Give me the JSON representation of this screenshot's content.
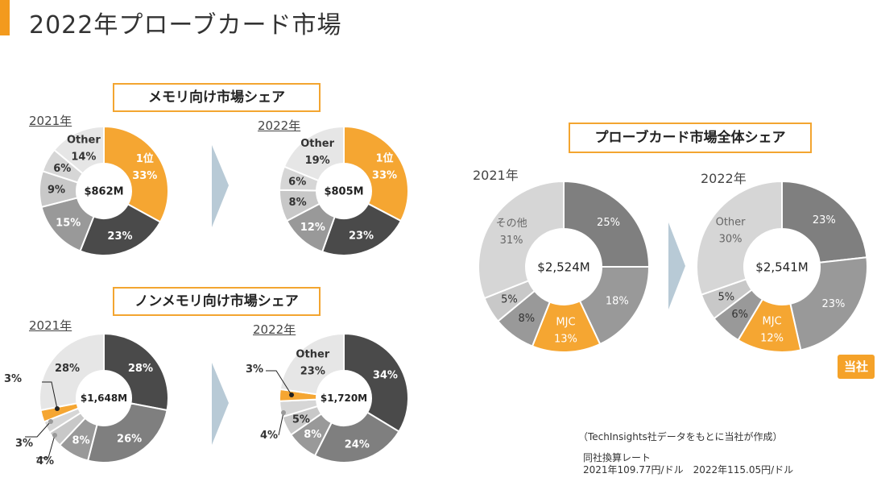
{
  "title": "2022年プローブカード市場",
  "sections": {
    "memory": "メモリ向け市場シェア",
    "nonmemory": "ノンメモリ向け市場シェア",
    "overall": "プローブカード市場全体シェア"
  },
  "years": {
    "y2021": "2021年",
    "y2022": "2022年"
  },
  "badge": "当社",
  "source_note": "（TechInsights社データをもとに当社が作成）",
  "rate_title": "同社換算レート",
  "rate_values": "2021年109.77円/ドル　2022年115.05円/ドル",
  "colors": {
    "orange": "#f5a632",
    "dark": "#4a4a4a",
    "mid": "#7f7f7f",
    "gray": "#999999",
    "light": "#c8c8c8",
    "lighter": "#d6d6d6",
    "pale": "#e6e6e6"
  },
  "chart_data": [
    {
      "type": "pie",
      "id": "memory-2021",
      "center_label": "$862M",
      "slices": [
        {
          "label": "1位\n33%",
          "value": 33,
          "color": "orange",
          "text": "light"
        },
        {
          "label": "23%",
          "value": 23,
          "color": "dark",
          "text": "light"
        },
        {
          "label": "15%",
          "value": 15,
          "color": "gray",
          "text": "light"
        },
        {
          "label": "9%",
          "value": 9,
          "color": "light",
          "text": "dark"
        },
        {
          "label": "6%",
          "value": 6,
          "color": "lighter",
          "text": "dark"
        },
        {
          "label": "Other\n14%",
          "value": 14,
          "color": "pale",
          "text": "dark"
        }
      ]
    },
    {
      "type": "pie",
      "id": "memory-2022",
      "center_label": "$805M",
      "slices": [
        {
          "label": "1位\n33%",
          "value": 33,
          "color": "orange",
          "text": "light"
        },
        {
          "label": "23%",
          "value": 23,
          "color": "dark",
          "text": "light"
        },
        {
          "label": "12%",
          "value": 12,
          "color": "gray",
          "text": "light"
        },
        {
          "label": "8%",
          "value": 8,
          "color": "light",
          "text": "dark"
        },
        {
          "label": "6%",
          "value": 6,
          "color": "lighter",
          "text": "dark"
        },
        {
          "label": "Other\n19%",
          "value": 19,
          "color": "pale",
          "text": "dark"
        }
      ]
    },
    {
      "type": "pie",
      "id": "nonmemory-2021",
      "center_label": "$1,648M",
      "slices": [
        {
          "label": "28%",
          "value": 28,
          "color": "dark",
          "text": "light"
        },
        {
          "label": "26%",
          "value": 26,
          "color": "mid",
          "text": "light"
        },
        {
          "label": "8%",
          "value": 8,
          "color": "gray",
          "text": "light"
        },
        {
          "label": "4%",
          "value": 4,
          "color": "light",
          "text": "dark",
          "outside": true
        },
        {
          "label": "3%",
          "value": 3,
          "color": "lighter",
          "text": "dark",
          "outside": true
        },
        {
          "label": "3%",
          "value": 3,
          "color": "orange",
          "text": "dark",
          "outside": true
        },
        {
          "label": "28%",
          "value": 28,
          "color": "pale",
          "text": "dark"
        }
      ]
    },
    {
      "type": "pie",
      "id": "nonmemory-2022",
      "center_label": "$1,720M",
      "slices": [
        {
          "label": "34%",
          "value": 34,
          "color": "dark",
          "text": "light"
        },
        {
          "label": "24%",
          "value": 24,
          "color": "mid",
          "text": "light"
        },
        {
          "label": "8%",
          "value": 8,
          "color": "gray",
          "text": "light"
        },
        {
          "label": "5%",
          "value": 5,
          "color": "light",
          "text": "dark"
        },
        {
          "label": "4%",
          "value": 4,
          "color": "lighter",
          "text": "dark",
          "outside": true
        },
        {
          "label": "3%",
          "value": 3,
          "color": "orange",
          "text": "dark",
          "outside": true
        },
        {
          "label": "Other\n23%",
          "value": 23,
          "color": "pale",
          "text": "dark"
        }
      ]
    },
    {
      "type": "pie",
      "id": "overall-2021",
      "center_label": "$2,524M",
      "slices": [
        {
          "label": "25%",
          "value": 25,
          "color": "mid",
          "text": "light"
        },
        {
          "label": "18%",
          "value": 18,
          "color": "gray",
          "text": "light"
        },
        {
          "label": "MJC\n13%",
          "value": 13,
          "color": "orange",
          "text": "light"
        },
        {
          "label": "8%",
          "value": 8,
          "color": "gray",
          "text": "dark"
        },
        {
          "label": "5%",
          "value": 5,
          "color": "light",
          "text": "dark"
        },
        {
          "label": "その他\n31%",
          "value": 31,
          "color": "lighter",
          "text": "mid"
        }
      ]
    },
    {
      "type": "pie",
      "id": "overall-2022",
      "center_label": "$2,541M",
      "slices": [
        {
          "label": "23%",
          "value": 23,
          "color": "mid",
          "text": "light"
        },
        {
          "label": "23%",
          "value": 23,
          "color": "gray",
          "text": "light"
        },
        {
          "label": "MJC\n12%",
          "value": 12,
          "color": "orange",
          "text": "light"
        },
        {
          "label": "6%",
          "value": 6,
          "color": "gray",
          "text": "dark"
        },
        {
          "label": "5%",
          "value": 5,
          "color": "light",
          "text": "dark"
        },
        {
          "label": "Other\n30%",
          "value": 30,
          "color": "lighter",
          "text": "mid"
        }
      ]
    }
  ]
}
